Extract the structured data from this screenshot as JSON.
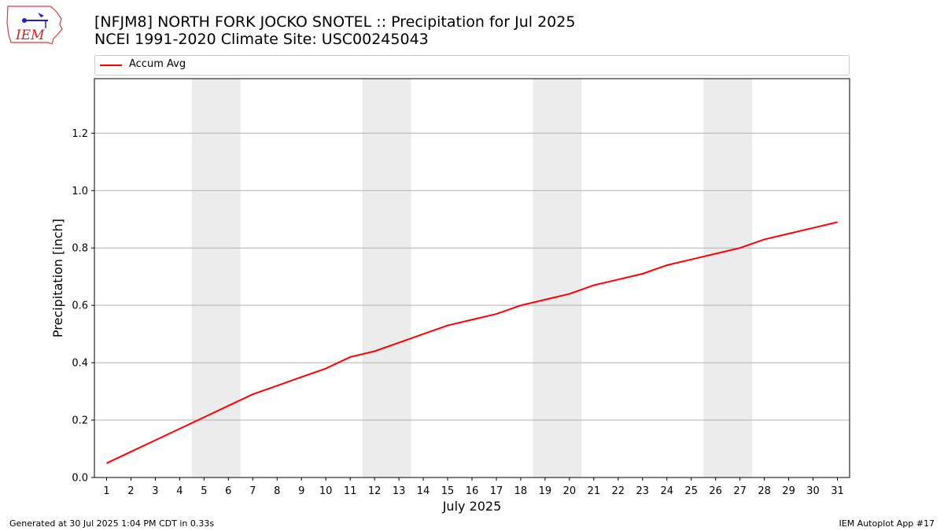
{
  "header": {
    "title_line1": "[NFJM8] NORTH FORK JOCKO SNOTEL :: Precipitation for Jul 2025",
    "title_line2": "NCEI 1991-2020 Climate Site: USC00245043"
  },
  "logo": {
    "text": "IEM"
  },
  "footer": {
    "left": "Generated at 30 Jul 2025 1:04 PM CDT in 0.33s",
    "right": "IEM Autoplot App #17"
  },
  "colors": {
    "line": "#ff0000",
    "weekend_band": "#ececec",
    "grid": "#b0b0b0"
  },
  "chart_data": {
    "type": "line",
    "title": "[NFJM8] NORTH FORK JOCKO SNOTEL :: Precipitation for Jul 2025",
    "subtitle": "NCEI 1991-2020 Climate Site: USC00245043",
    "xlabel": "July 2025",
    "ylabel": "Precipitation [inch]",
    "x": [
      1,
      2,
      3,
      4,
      5,
      6,
      7,
      8,
      9,
      10,
      11,
      12,
      13,
      14,
      15,
      16,
      17,
      18,
      19,
      20,
      21,
      22,
      23,
      24,
      25,
      26,
      27,
      28,
      29,
      30,
      31
    ],
    "xlim": [
      0.5,
      31.5
    ],
    "ylim": [
      0,
      1.39
    ],
    "yticks": [
      0.0,
      0.2,
      0.4,
      0.6,
      0.8,
      1.0,
      1.2
    ],
    "ytick_labels": [
      "0.0",
      "0.2",
      "0.4",
      "0.6",
      "0.8",
      "1.0",
      "1.2"
    ],
    "grid": "horizontal",
    "legend_position": "top",
    "weekend_bands": [
      [
        5,
        6
      ],
      [
        12,
        13
      ],
      [
        19,
        20
      ],
      [
        26,
        27
      ]
    ],
    "series": [
      {
        "name": "Accum Avg",
        "color": "#ff0000",
        "values": [
          0.05,
          0.09,
          0.13,
          0.17,
          0.21,
          0.25,
          0.29,
          0.32,
          0.35,
          0.38,
          0.42,
          0.44,
          0.47,
          0.5,
          0.53,
          0.55,
          0.57,
          0.6,
          0.62,
          0.64,
          0.67,
          0.69,
          0.71,
          0.74,
          0.76,
          0.78,
          0.8,
          0.83,
          0.85,
          0.87,
          0.89
        ]
      }
    ]
  }
}
